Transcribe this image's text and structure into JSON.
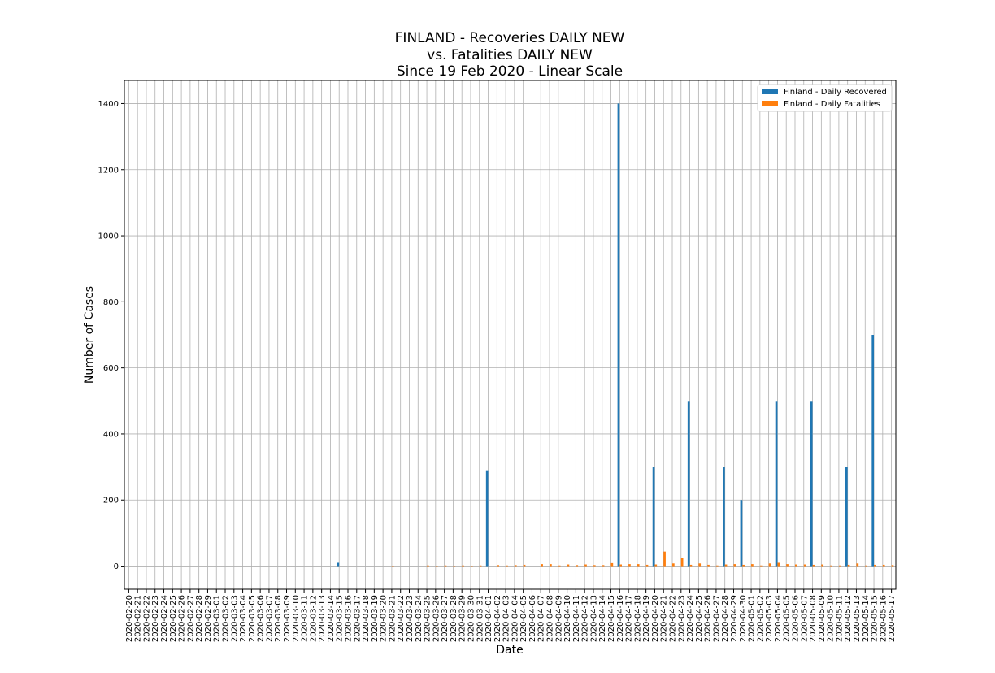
{
  "chart_data": {
    "type": "bar",
    "title_lines": [
      "FINLAND - Recoveries DAILY NEW",
      "vs. Fatalities DAILY NEW",
      "Since 19 Feb 2020 - Linear Scale"
    ],
    "xlabel": "Date",
    "ylabel": "Number of Cases",
    "ylim": [
      -70,
      1470
    ],
    "yticks": [
      0,
      200,
      400,
      600,
      800,
      1000,
      1200,
      1400
    ],
    "grid": true,
    "legend_position": "top-right",
    "categories": [
      "2020-02-20",
      "2020-02-21",
      "2020-02-22",
      "2020-02-23",
      "2020-02-24",
      "2020-02-25",
      "2020-02-26",
      "2020-02-27",
      "2020-02-28",
      "2020-02-29",
      "2020-03-01",
      "2020-03-02",
      "2020-03-03",
      "2020-03-04",
      "2020-03-05",
      "2020-03-06",
      "2020-03-07",
      "2020-03-08",
      "2020-03-09",
      "2020-03-10",
      "2020-03-11",
      "2020-03-12",
      "2020-03-13",
      "2020-03-14",
      "2020-03-15",
      "2020-03-16",
      "2020-03-17",
      "2020-03-18",
      "2020-03-19",
      "2020-03-20",
      "2020-03-21",
      "2020-03-22",
      "2020-03-23",
      "2020-03-24",
      "2020-03-25",
      "2020-03-26",
      "2020-03-27",
      "2020-03-28",
      "2020-03-29",
      "2020-03-30",
      "2020-03-31",
      "2020-04-01",
      "2020-04-02",
      "2020-04-03",
      "2020-04-04",
      "2020-04-05",
      "2020-04-06",
      "2020-04-07",
      "2020-04-08",
      "2020-04-09",
      "2020-04-10",
      "2020-04-11",
      "2020-04-12",
      "2020-04-13",
      "2020-04-14",
      "2020-04-15",
      "2020-04-16",
      "2020-04-17",
      "2020-04-18",
      "2020-04-19",
      "2020-04-20",
      "2020-04-21",
      "2020-04-22",
      "2020-04-23",
      "2020-04-24",
      "2020-04-25",
      "2020-04-26",
      "2020-04-27",
      "2020-04-28",
      "2020-04-29",
      "2020-04-30",
      "2020-05-01",
      "2020-05-02",
      "2020-05-03",
      "2020-05-04",
      "2020-05-05",
      "2020-05-06",
      "2020-05-07",
      "2020-05-08",
      "2020-05-09",
      "2020-05-10",
      "2020-05-11",
      "2020-05-12",
      "2020-05-13",
      "2020-05-14",
      "2020-05-15",
      "2020-05-16",
      "2020-05-17"
    ],
    "series": [
      {
        "name": "Finland - Daily Recovered",
        "color": "#1f77b4",
        "values": [
          0,
          0,
          0,
          0,
          0,
          0,
          0,
          0,
          0,
          0,
          0,
          0,
          0,
          0,
          0,
          0,
          0,
          0,
          0,
          0,
          0,
          0,
          0,
          0,
          10,
          0,
          0,
          0,
          0,
          0,
          0,
          0,
          0,
          0,
          0,
          0,
          0,
          0,
          0,
          0,
          0,
          290,
          0,
          0,
          0,
          0,
          0,
          0,
          0,
          0,
          0,
          0,
          0,
          0,
          0,
          0,
          1400,
          0,
          0,
          0,
          300,
          0,
          0,
          0,
          500,
          0,
          0,
          0,
          300,
          0,
          200,
          0,
          0,
          0,
          500,
          0,
          0,
          0,
          500,
          0,
          0,
          0,
          300,
          0,
          0,
          700,
          0,
          0
        ]
      },
      {
        "name": "Finland - Daily Fatalities",
        "color": "#ff7f0e",
        "values": [
          0,
          0,
          0,
          0,
          0,
          0,
          0,
          0,
          0,
          0,
          0,
          0,
          0,
          0,
          0,
          0,
          0,
          0,
          0,
          0,
          0,
          0,
          0,
          0,
          0,
          0,
          0,
          0,
          0,
          0,
          1,
          0,
          0,
          0,
          2,
          1,
          2,
          1,
          2,
          1,
          2,
          0,
          3,
          2,
          3,
          4,
          0,
          6,
          6,
          2,
          5,
          3,
          5,
          3,
          3,
          9,
          5,
          6,
          6,
          4,
          5,
          44,
          8,
          25,
          4,
          8,
          4,
          2,
          5,
          6,
          4,
          6,
          2,
          8,
          10,
          6,
          5,
          5,
          4,
          5,
          2,
          2,
          4,
          8,
          2,
          4,
          4,
          3
        ]
      }
    ]
  }
}
